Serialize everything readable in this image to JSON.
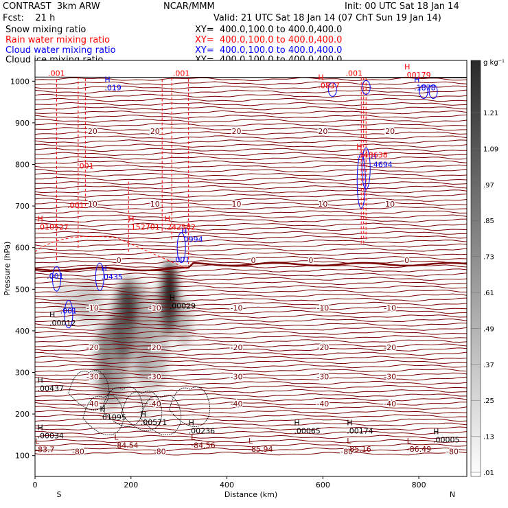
{
  "header": {
    "model": "CONTRAST  3km ARW",
    "center": "NCAR/MMM",
    "init": "Init: 00 UTC Sat 18 Jan 14",
    "fcst": "Fcst:    21 h",
    "valid": "Valid: 21 UTC Sat 18 Jan 14 (07 ChT Sun 19 Jan 14)"
  },
  "fields": [
    {
      "name": "Snow mixing ratio",
      "xy": "XY=  400.0,100.0 to 400.0,400.0",
      "color": "#000000"
    },
    {
      "name": "Rain water mixing ratio",
      "xy": "XY=  400.0,100.0 to 400.0,400.0",
      "color": "#ff0000"
    },
    {
      "name": "Cloud water mixing ratio",
      "xy": "XY=  400.0,100.0 to 400.0,400.0",
      "color": "#0000ff"
    },
    {
      "name": "Cloud ice mixing ratio",
      "xy": "XY=  400.0,100.0 to 400.0,400.0",
      "color": "#000000"
    }
  ],
  "chart_data": {
    "type": "heatmap",
    "xlabel": "Distance (km)",
    "ylabel": "Pressure (hPa)",
    "xlim": [
      0,
      900
    ],
    "ylim": [
      1050,
      50
    ],
    "x_ticks": [
      0,
      200,
      400,
      600,
      800
    ],
    "y_ticks": [
      100,
      200,
      300,
      400,
      500,
      600,
      700,
      800,
      900,
      1000
    ],
    "x_ends": {
      "left": "S",
      "right": "N"
    },
    "colorbar": {
      "unit": "g kg⁻¹",
      "labels": [
        "1.21",
        "1.09",
        ".97",
        ".85",
        ".73",
        ".61",
        ".49",
        ".37",
        ".25",
        ".13",
        ".01"
      ]
    },
    "temperature_contours": [
      {
        "label": "-80",
        "p": 110
      },
      {
        "label": "-40",
        "p": 225
      },
      {
        "label": "-30",
        "p": 290
      },
      {
        "label": "-20",
        "p": 360
      },
      {
        "label": "-10",
        "p": 455
      },
      {
        "label": "0",
        "p": 570
      },
      {
        "label": "10",
        "p": 705
      },
      {
        "label": "20",
        "p": 880
      }
    ],
    "extrema": [
      {
        "kind": "L",
        "text": "-83.7",
        "x": 0,
        "p": 115,
        "color": "#800000"
      },
      {
        "kind": "L",
        "text": "-84.54",
        "x": 165,
        "p": 125,
        "color": "#800000"
      },
      {
        "kind": "L",
        "text": "-84.56",
        "x": 325,
        "p": 125,
        "color": "#800000"
      },
      {
        "kind": "L",
        "text": "-85.94",
        "x": 445,
        "p": 116,
        "color": "#800000"
      },
      {
        "kind": "L",
        "text": "-85.16",
        "x": 650,
        "p": 116,
        "color": "#800000"
      },
      {
        "kind": "L",
        "text": "-86.49",
        "x": 775,
        "p": 116,
        "color": "#800000"
      },
      {
        "kind": "H",
        "text": ".00034",
        "x": 5,
        "p": 148,
        "color": "#000000"
      },
      {
        "kind": "H",
        "text": ".00236",
        "x": 320,
        "p": 160,
        "color": "#000000"
      },
      {
        "kind": "H",
        "text": ".00065",
        "x": 540,
        "p": 160,
        "color": "#000000"
      },
      {
        "kind": "H",
        "text": ".00174",
        "x": 650,
        "p": 160,
        "color": "#000000"
      },
      {
        "kind": "H",
        "text": ".00005",
        "x": 830,
        "p": 138,
        "color": "#000000"
      },
      {
        "kind": "H",
        "text": ".01095",
        "x": 135,
        "p": 193,
        "color": "#000000"
      },
      {
        "kind": "H",
        "text": ".00571",
        "x": 220,
        "p": 180,
        "color": "#000000"
      },
      {
        "kind": "H",
        "text": ".00437",
        "x": 5,
        "p": 262,
        "color": "#000000"
      },
      {
        "kind": "H",
        "text": ".00012",
        "x": 30,
        "p": 420,
        "color": "#000000"
      },
      {
        "kind": "H",
        "text": ".00029",
        "x": 280,
        "p": 460,
        "color": "#000000"
      },
      {
        "kind": "H",
        "text": ".0435",
        "x": 138,
        "p": 530,
        "color": "#0000ff"
      },
      {
        "kind": "H",
        "text": ".0994",
        "x": 305,
        "p": 620,
        "color": "#0000ff"
      },
      {
        "kind": "H",
        "text": ".010527",
        "x": 5,
        "p": 650,
        "color": "#ff0000"
      },
      {
        "kind": "H",
        "text": ".152701",
        "x": 195,
        "p": 650,
        "color": "#ff0000"
      },
      {
        "kind": "H",
        "text": ".242582",
        "x": 270,
        "p": 650,
        "color": "#ff0000"
      },
      {
        "kind": "H",
        "text": ".4694",
        "x": 700,
        "p": 800,
        "color": "#0000ff"
      },
      {
        "kind": "H",
        "text": ".348638",
        "x": 670,
        "p": 823,
        "color": "#ff0000"
      },
      {
        "kind": "H",
        "text": ".019",
        "x": 145,
        "p": 985,
        "color": "#0000ff"
      },
      {
        "kind": "H",
        "text": ".0837",
        "x": 590,
        "p": 990,
        "color": "#ff0000"
      },
      {
        "kind": "H",
        "text": ".1878",
        "x": 790,
        "p": 985,
        "color": "#0000ff"
      },
      {
        "kind": "H",
        "text": ".00179",
        "x": 770,
        "p": 1015,
        "color": "#ff0000"
      }
    ],
    "small_labels": [
      {
        "text": ".001",
        "x": 70,
        "p": 442,
        "color": "#0000ff"
      },
      {
        "text": ".001",
        "x": 42,
        "p": 525,
        "color": "#0000ff"
      },
      {
        "text": ".001",
        "x": 305,
        "p": 565,
        "color": "#0000ff"
      },
      {
        "text": ".001",
        "x": 85,
        "p": 695,
        "color": "#ff0000"
      },
      {
        "text": ".001",
        "x": 105,
        "p": 790,
        "color": "#ff0000"
      },
      {
        "text": ".001",
        "x": 45,
        "p": 1013,
        "color": "#ff0000"
      },
      {
        "text": ".001",
        "x": 305,
        "p": 1013,
        "color": "#ff0000"
      },
      {
        "text": ".001",
        "x": 665,
        "p": 1013,
        "color": "#ff0000"
      }
    ]
  }
}
